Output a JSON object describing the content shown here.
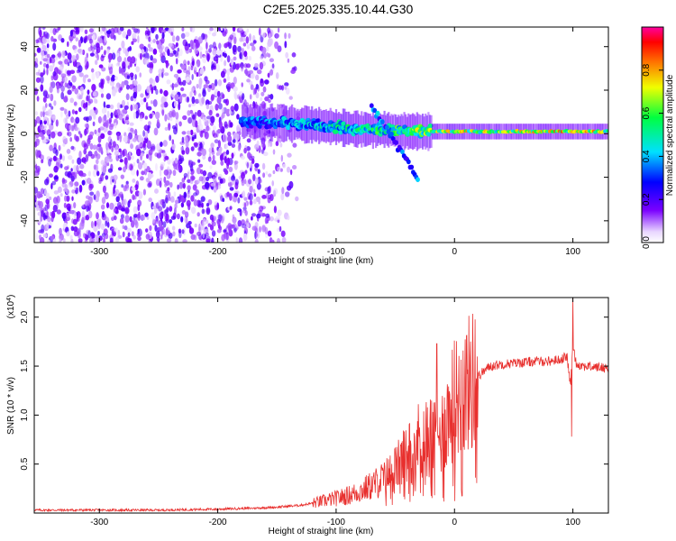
{
  "figure_title": "C2E5.2025.335.10.44.G30",
  "colors": {
    "snr_line": "#e8302e",
    "spectrogram_dots": "#8a2be2",
    "axis": "#000000"
  },
  "chart_data": [
    {
      "type": "heatmap",
      "title": "C2E5.2025.335.10.44.G30",
      "xlabel": "Height of straight line (km)",
      "ylabel": "Frequency (Hz)",
      "xlim": [
        -355,
        130
      ],
      "ylim": [
        -50,
        49
      ],
      "xticks": [
        -300,
        -200,
        -100,
        0,
        100
      ],
      "yticks": [
        -40,
        -20,
        0,
        20,
        40
      ],
      "xtick_labels": [
        "-300",
        "-200",
        "-100",
        "0",
        "100"
      ],
      "ytick_labels": [
        "-40",
        "-20",
        "0",
        "20",
        "40"
      ],
      "colorbar": {
        "label": "Normalized spectral amplitude",
        "range": [
          0,
          1
        ],
        "ticks": [
          0.0,
          0.2,
          0.4,
          0.6,
          0.8
        ],
        "tick_labels": [
          "0.0",
          "0.2",
          "0.4",
          "0.6",
          "0.8"
        ],
        "colormap": "rainbow (white-violet-blue-cyan-green-yellow-red-magenta)"
      },
      "features": {
        "noise_region_km": [
          -355,
          -140
        ],
        "noise_region_amplitude": 0.12,
        "signal_trace": {
          "x_km": [
            -180,
            -150,
            -120,
            -100,
            -80,
            -60,
            -40,
            -20,
            0,
            20,
            50,
            80,
            100,
            130
          ],
          "frequency_hz": [
            6,
            5,
            4,
            3,
            2,
            2,
            1,
            1,
            1,
            1,
            1,
            1,
            1,
            1
          ],
          "amplitude": [
            0.35,
            0.4,
            0.45,
            0.5,
            0.55,
            0.55,
            0.6,
            0.7,
            0.75,
            0.7,
            0.7,
            0.75,
            0.8,
            0.7
          ]
        },
        "drifting_branch": {
          "x_km": [
            -70,
            -55,
            -40,
            -30
          ],
          "frequency_hz": [
            12,
            0,
            -12,
            -22
          ]
        }
      }
    },
    {
      "type": "line",
      "xlabel": "Height of straight line (km)",
      "ylabel": "SNR (10 * v/v)",
      "y_scale_label": "(x10",
      "y_scale_exponent": "4",
      "y_scale_factor": 10000,
      "xlim": [
        -355,
        130
      ],
      "ylim": [
        0,
        2.2
      ],
      "xticks": [
        -300,
        -200,
        -100,
        0,
        100
      ],
      "yticks": [
        0.5,
        1.0,
        1.5,
        2.0
      ],
      "xtick_labels": [
        "-300",
        "-200",
        "-100",
        "0",
        "100"
      ],
      "ytick_labels": [
        "0.5",
        "1.0",
        "1.5",
        "2.0"
      ],
      "series": [
        {
          "name": "SNR",
          "x": [
            -355,
            -300,
            -250,
            -200,
            -170,
            -150,
            -130,
            -120,
            -100,
            -90,
            -80,
            -70,
            -60,
            -50,
            -40,
            -30,
            -20,
            -15,
            -10,
            -5,
            0,
            10,
            20,
            30,
            40,
            50,
            60,
            70,
            80,
            90,
            95,
            98,
            100,
            103,
            110,
            120,
            130
          ],
          "y": [
            0.03,
            0.03,
            0.03,
            0.04,
            0.05,
            0.06,
            0.08,
            0.1,
            0.15,
            0.18,
            0.22,
            0.28,
            0.35,
            0.45,
            0.6,
            0.75,
            0.8,
            0.7,
            0.85,
            1.0,
            1.15,
            1.3,
            1.4,
            1.5,
            1.52,
            1.53,
            1.54,
            1.55,
            1.55,
            1.57,
            1.6,
            1.3,
            1.7,
            1.52,
            1.5,
            1.49,
            1.48
          ]
        }
      ],
      "annotations": [
        {
          "x": -15,
          "y": 1.73,
          "note": "spike"
        },
        {
          "x": 100,
          "y": 2.2,
          "note": "spike"
        },
        {
          "x": 99,
          "y": 0.78,
          "note": "dip"
        }
      ]
    }
  ]
}
